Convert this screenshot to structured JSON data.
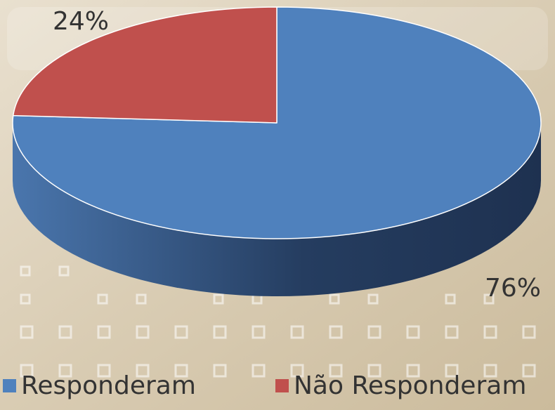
{
  "chart_data": {
    "type": "pie",
    "categories": [
      "Responderam",
      "Não Responderam"
    ],
    "values": [
      76,
      24
    ],
    "value_labels": [
      "76%",
      "24%"
    ],
    "colors": [
      "#4f81bd",
      "#c0504d"
    ]
  }
}
